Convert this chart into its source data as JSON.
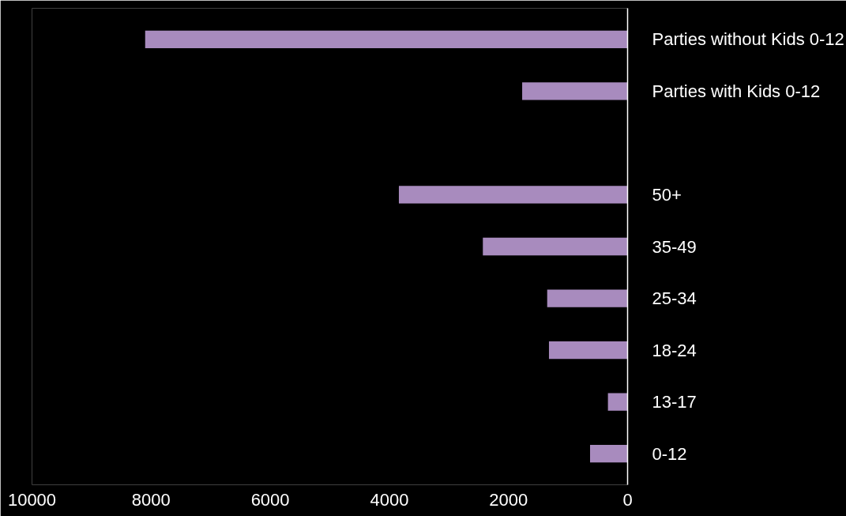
{
  "chart_data": {
    "type": "bar",
    "orientation": "horizontal",
    "categories": [
      "Parties without Kids 0-12",
      "Parties with Kids 0-12",
      null,
      "50+",
      "35-49",
      "25-34",
      "18-24",
      "13-17",
      "0-12"
    ],
    "values": [
      8100,
      1770,
      null,
      3840,
      2430,
      1350,
      1320,
      330,
      630
    ],
    "color": "#a88bbe",
    "xlim": [
      10000,
      0
    ],
    "xticks": [
      10000,
      8000,
      6000,
      4000,
      2000,
      0
    ],
    "grid": false
  }
}
